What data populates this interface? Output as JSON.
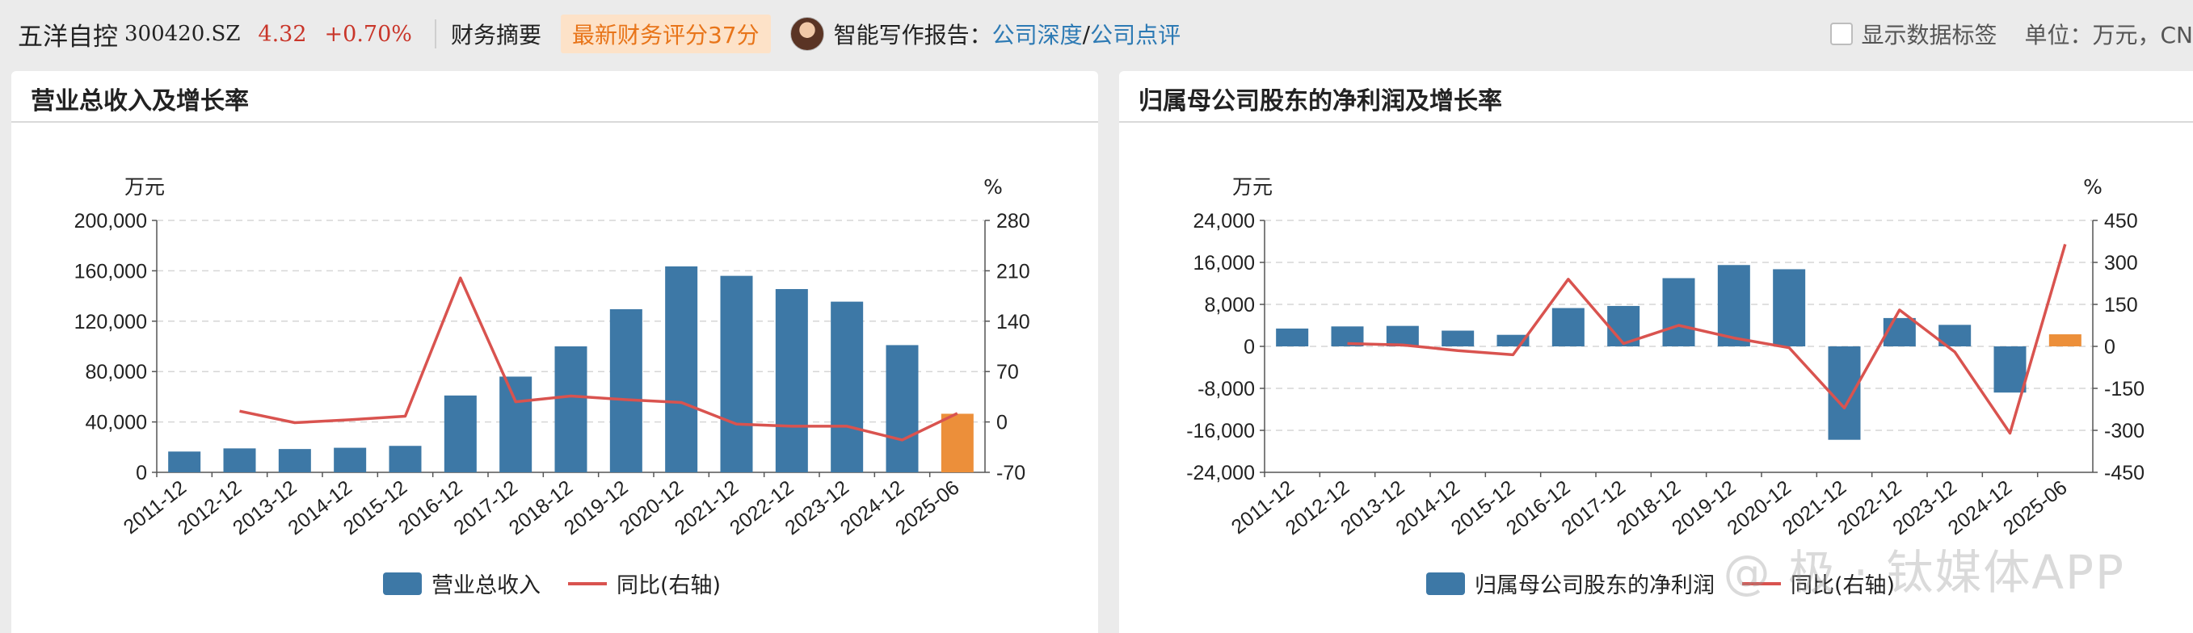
{
  "header": {
    "stock_name": "五洋自控",
    "stock_code": "300420.SZ",
    "price": "4.32",
    "change": "+0.70%",
    "tab_label": "财务摘要",
    "rating_label": "最新财务评分37分",
    "ai_label": "智能写作报告：",
    "link_deep": "公司深度",
    "link_slash": "/",
    "link_review": "公司点评",
    "show_labels": "显示数据标签",
    "unit_label": "单位：万元，CN",
    "accent_red": "#c9362a",
    "accent_orange": "#e8751a",
    "link_color": "#2d7ab4"
  },
  "charts": [
    {
      "panel_title": "营业总收入及增长率",
      "left_unit": "万元",
      "right_unit": "%",
      "legend_bar": "营业总收入",
      "legend_line": "同比(右轴)"
    },
    {
      "panel_title": "归属母公司股东的净利润及增长率",
      "left_unit": "万元",
      "right_unit": "%",
      "legend_bar": "归属母公司股东的净利润",
      "legend_line": "同比(右轴)"
    }
  ],
  "watermark": "@ 极 · 钛媒体APP",
  "chart_data": [
    {
      "type": "bar",
      "title": "营业总收入及增长率",
      "categories": [
        "2011-12",
        "2012-12",
        "2013-12",
        "2014-12",
        "2015-12",
        "2016-12",
        "2017-12",
        "2018-12",
        "2019-12",
        "2020-12",
        "2021-12",
        "2022-12",
        "2023-12",
        "2024-12",
        "2025-06"
      ],
      "series": [
        {
          "name": "营业总收入",
          "axis": "left",
          "values": [
            16500,
            19000,
            18500,
            19500,
            21000,
            61000,
            76000,
            100000,
            129500,
            163500,
            156000,
            145500,
            135500,
            101000,
            46500
          ]
        },
        {
          "name": "同比(右轴)",
          "axis": "right",
          "type": "line",
          "values": [
            null,
            15,
            -1,
            3,
            8,
            200,
            28,
            36,
            31,
            27,
            -3,
            -6,
            -6,
            -25,
            12
          ]
        }
      ],
      "left_ticks": [
        "0",
        "40,000",
        "80,000",
        "120,000",
        "160,000",
        "200,000"
      ],
      "right_ticks": [
        "-70",
        "0",
        "70",
        "140",
        "210",
        "280"
      ],
      "ylim": [
        0,
        200000
      ],
      "y2lim": [
        -70,
        280
      ],
      "bar_color": "#3d78a6",
      "highlight_color": "#ec8f3a",
      "line_color": "#d9534f",
      "grid": true
    },
    {
      "type": "bar",
      "title": "归属母公司股东的净利润及增长率",
      "categories": [
        "2011-12",
        "2012-12",
        "2013-12",
        "2014-12",
        "2015-12",
        "2016-12",
        "2017-12",
        "2018-12",
        "2019-12",
        "2020-12",
        "2021-12",
        "2022-12",
        "2023-12",
        "2024-12",
        "2025-06"
      ],
      "series": [
        {
          "name": "归属母公司股东的净利润",
          "axis": "left",
          "values": [
            3400,
            3800,
            3900,
            3000,
            2200,
            7300,
            7700,
            13000,
            15500,
            14700,
            -17800,
            5400,
            4100,
            -8800,
            2300
          ]
        },
        {
          "name": "同比(右轴)",
          "axis": "right",
          "type": "line",
          "values": [
            null,
            10,
            5,
            -15,
            -30,
            240,
            10,
            75,
            30,
            -5,
            -220,
            130,
            -20,
            -310,
            365
          ]
        }
      ],
      "left_ticks": [
        "-24,000",
        "-16,000",
        "-8,000",
        "0",
        "8,000",
        "16,000",
        "24,000"
      ],
      "right_ticks": [
        "-450",
        "-300",
        "-150",
        "0",
        "150",
        "300",
        "450"
      ],
      "ylim": [
        -24000,
        24000
      ],
      "y2lim": [
        -450,
        450
      ],
      "bar_color": "#3d78a6",
      "highlight_color": "#ec8f3a",
      "line_color": "#d9534f",
      "grid": true
    }
  ]
}
